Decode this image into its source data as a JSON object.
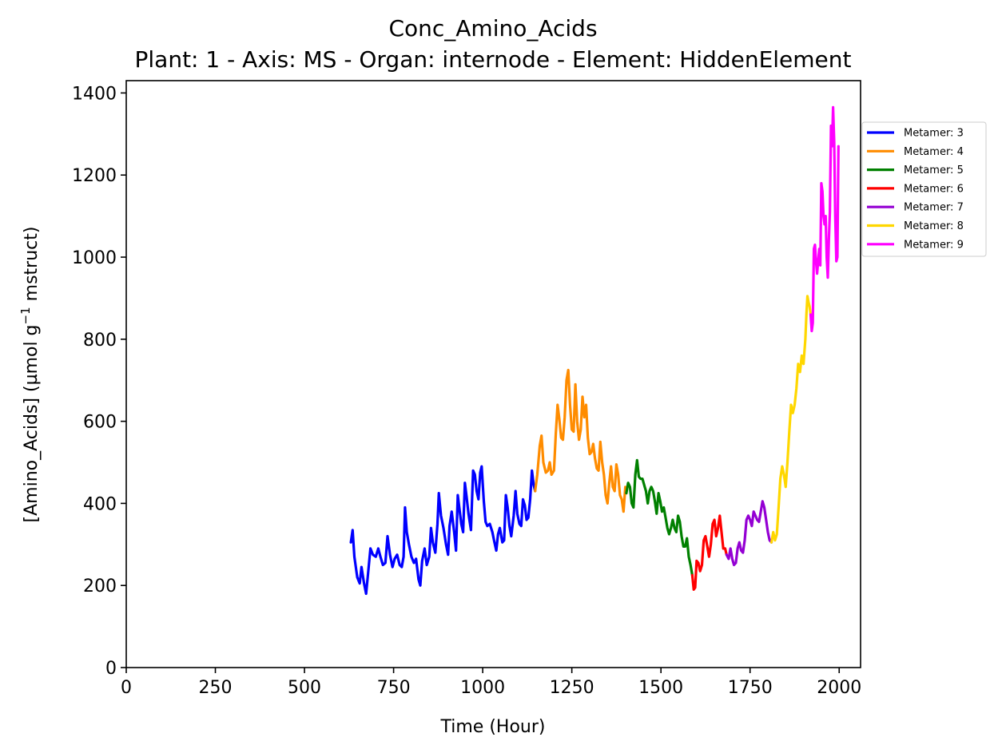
{
  "chart_data": {
    "type": "line",
    "title": "Conc_Amino_Acids",
    "subtitle": "Plant: 1 - Axis: MS - Organ: internode - Element: HiddenElement",
    "xlabel": "Time (Hour)",
    "ylabel_main": "[Amino_Acids] (µmol g",
    "ylabel_sup": "−1",
    "ylabel_tail": " mstruct)",
    "xlim": [
      0,
      2060
    ],
    "ylim": [
      0,
      1430
    ],
    "xticks": [
      0,
      250,
      500,
      750,
      1000,
      1250,
      1500,
      1750,
      2000
    ],
    "yticks": [
      0,
      200,
      400,
      600,
      800,
      1000,
      1200,
      1400
    ],
    "grid": false,
    "legend_position": "right, outside top",
    "series": [
      {
        "name": "Metamer: 3",
        "color": "#0000ff",
        "points": [
          [
            630,
            305
          ],
          [
            635,
            335
          ],
          [
            640,
            270
          ],
          [
            648,
            220
          ],
          [
            655,
            205
          ],
          [
            660,
            245
          ],
          [
            667,
            205
          ],
          [
            673,
            180
          ],
          [
            680,
            245
          ],
          [
            685,
            290
          ],
          [
            692,
            275
          ],
          [
            700,
            270
          ],
          [
            707,
            290
          ],
          [
            713,
            270
          ],
          [
            720,
            250
          ],
          [
            727,
            255
          ],
          [
            733,
            320
          ],
          [
            740,
            275
          ],
          [
            747,
            245
          ],
          [
            753,
            265
          ],
          [
            760,
            275
          ],
          [
            767,
            250
          ],
          [
            773,
            245
          ],
          [
            778,
            270
          ],
          [
            782,
            390
          ],
          [
            787,
            330
          ],
          [
            793,
            300
          ],
          [
            800,
            270
          ],
          [
            807,
            255
          ],
          [
            813,
            265
          ],
          [
            820,
            215
          ],
          [
            825,
            200
          ],
          [
            830,
            260
          ],
          [
            837,
            290
          ],
          [
            843,
            250
          ],
          [
            850,
            270
          ],
          [
            855,
            340
          ],
          [
            860,
            305
          ],
          [
            867,
            280
          ],
          [
            873,
            350
          ],
          [
            877,
            425
          ],
          [
            883,
            370
          ],
          [
            890,
            340
          ],
          [
            897,
            300
          ],
          [
            903,
            275
          ],
          [
            907,
            345
          ],
          [
            913,
            380
          ],
          [
            920,
            330
          ],
          [
            925,
            285
          ],
          [
            930,
            420
          ],
          [
            935,
            385
          ],
          [
            940,
            350
          ],
          [
            945,
            330
          ],
          [
            950,
            450
          ],
          [
            955,
            415
          ],
          [
            960,
            375
          ],
          [
            967,
            335
          ],
          [
            973,
            480
          ],
          [
            978,
            470
          ],
          [
            983,
            430
          ],
          [
            988,
            410
          ],
          [
            993,
            475
          ],
          [
            997,
            490
          ],
          [
            1003,
            405
          ],
          [
            1008,
            355
          ],
          [
            1013,
            345
          ],
          [
            1020,
            350
          ],
          [
            1027,
            330
          ],
          [
            1033,
            305
          ],
          [
            1038,
            285
          ],
          [
            1043,
            325
          ],
          [
            1048,
            340
          ],
          [
            1055,
            305
          ],
          [
            1060,
            310
          ],
          [
            1065,
            420
          ],
          [
            1070,
            390
          ],
          [
            1075,
            345
          ],
          [
            1080,
            320
          ],
          [
            1087,
            370
          ],
          [
            1092,
            430
          ],
          [
            1097,
            375
          ],
          [
            1103,
            350
          ],
          [
            1108,
            345
          ],
          [
            1113,
            410
          ],
          [
            1118,
            395
          ],
          [
            1123,
            360
          ],
          [
            1128,
            365
          ],
          [
            1133,
            410
          ],
          [
            1138,
            480
          ],
          [
            1143,
            445
          ],
          [
            1147,
            430
          ]
        ]
      },
      {
        "name": "Metamer: 4",
        "color": "#ff8c00",
        "points": [
          [
            1147,
            430
          ],
          [
            1153,
            470
          ],
          [
            1160,
            540
          ],
          [
            1165,
            565
          ],
          [
            1170,
            500
          ],
          [
            1177,
            475
          ],
          [
            1183,
            480
          ],
          [
            1188,
            500
          ],
          [
            1193,
            470
          ],
          [
            1200,
            480
          ],
          [
            1205,
            570
          ],
          [
            1210,
            640
          ],
          [
            1215,
            605
          ],
          [
            1220,
            560
          ],
          [
            1225,
            555
          ],
          [
            1230,
            610
          ],
          [
            1235,
            700
          ],
          [
            1240,
            725
          ],
          [
            1245,
            640
          ],
          [
            1250,
            580
          ],
          [
            1255,
            575
          ],
          [
            1260,
            690
          ],
          [
            1265,
            600
          ],
          [
            1270,
            555
          ],
          [
            1275,
            580
          ],
          [
            1280,
            660
          ],
          [
            1285,
            610
          ],
          [
            1290,
            640
          ],
          [
            1295,
            560
          ],
          [
            1300,
            520
          ],
          [
            1305,
            525
          ],
          [
            1310,
            545
          ],
          [
            1315,
            510
          ],
          [
            1320,
            485
          ],
          [
            1325,
            480
          ],
          [
            1330,
            550
          ],
          [
            1335,
            500
          ],
          [
            1340,
            470
          ],
          [
            1345,
            420
          ],
          [
            1350,
            400
          ],
          [
            1355,
            450
          ],
          [
            1360,
            490
          ],
          [
            1365,
            440
          ],
          [
            1370,
            430
          ],
          [
            1375,
            495
          ],
          [
            1380,
            470
          ],
          [
            1385,
            420
          ],
          [
            1390,
            410
          ],
          [
            1395,
            380
          ],
          [
            1400,
            440
          ],
          [
            1403,
            425
          ]
        ]
      },
      {
        "name": "Metamer: 5",
        "color": "#008000",
        "points": [
          [
            1403,
            425
          ],
          [
            1408,
            450
          ],
          [
            1413,
            440
          ],
          [
            1418,
            400
          ],
          [
            1423,
            390
          ],
          [
            1428,
            470
          ],
          [
            1433,
            505
          ],
          [
            1438,
            465
          ],
          [
            1443,
            460
          ],
          [
            1448,
            460
          ],
          [
            1453,
            445
          ],
          [
            1458,
            430
          ],
          [
            1463,
            400
          ],
          [
            1468,
            430
          ],
          [
            1473,
            440
          ],
          [
            1478,
            430
          ],
          [
            1483,
            405
          ],
          [
            1488,
            375
          ],
          [
            1493,
            425
          ],
          [
            1498,
            405
          ],
          [
            1503,
            380
          ],
          [
            1508,
            390
          ],
          [
            1513,
            365
          ],
          [
            1518,
            340
          ],
          [
            1523,
            325
          ],
          [
            1528,
            340
          ],
          [
            1533,
            360
          ],
          [
            1538,
            340
          ],
          [
            1543,
            330
          ],
          [
            1548,
            370
          ],
          [
            1553,
            355
          ],
          [
            1558,
            320
          ],
          [
            1563,
            295
          ],
          [
            1568,
            295
          ],
          [
            1573,
            315
          ],
          [
            1578,
            270
          ],
          [
            1583,
            250
          ],
          [
            1588,
            225
          ]
        ]
      },
      {
        "name": "Metamer: 6",
        "color": "#ff0000",
        "points": [
          [
            1588,
            225
          ],
          [
            1592,
            190
          ],
          [
            1596,
            195
          ],
          [
            1600,
            260
          ],
          [
            1605,
            255
          ],
          [
            1610,
            235
          ],
          [
            1615,
            250
          ],
          [
            1620,
            310
          ],
          [
            1625,
            320
          ],
          [
            1630,
            295
          ],
          [
            1635,
            270
          ],
          [
            1640,
            300
          ],
          [
            1645,
            350
          ],
          [
            1650,
            360
          ],
          [
            1655,
            320
          ],
          [
            1660,
            340
          ],
          [
            1665,
            370
          ],
          [
            1670,
            330
          ],
          [
            1675,
            290
          ],
          [
            1680,
            290
          ],
          [
            1684,
            275
          ]
        ]
      },
      {
        "name": "Metamer: 7",
        "color": "#9400d3",
        "points": [
          [
            1684,
            275
          ],
          [
            1690,
            265
          ],
          [
            1695,
            290
          ],
          [
            1700,
            265
          ],
          [
            1705,
            250
          ],
          [
            1710,
            255
          ],
          [
            1715,
            290
          ],
          [
            1720,
            305
          ],
          [
            1725,
            285
          ],
          [
            1730,
            280
          ],
          [
            1735,
            310
          ],
          [
            1740,
            360
          ],
          [
            1745,
            370
          ],
          [
            1750,
            360
          ],
          [
            1755,
            345
          ],
          [
            1760,
            380
          ],
          [
            1765,
            370
          ],
          [
            1770,
            360
          ],
          [
            1775,
            355
          ],
          [
            1780,
            380
          ],
          [
            1785,
            405
          ],
          [
            1790,
            390
          ],
          [
            1795,
            360
          ],
          [
            1800,
            330
          ],
          [
            1805,
            310
          ],
          [
            1810,
            305
          ]
        ]
      },
      {
        "name": "Metamer: 8",
        "color": "#ffd700",
        "points": [
          [
            1810,
            305
          ],
          [
            1815,
            330
          ],
          [
            1820,
            310
          ],
          [
            1825,
            325
          ],
          [
            1830,
            390
          ],
          [
            1835,
            460
          ],
          [
            1840,
            490
          ],
          [
            1845,
            470
          ],
          [
            1850,
            440
          ],
          [
            1855,
            500
          ],
          [
            1860,
            575
          ],
          [
            1865,
            640
          ],
          [
            1870,
            620
          ],
          [
            1875,
            640
          ],
          [
            1880,
            680
          ],
          [
            1885,
            740
          ],
          [
            1890,
            720
          ],
          [
            1895,
            760
          ],
          [
            1900,
            740
          ],
          [
            1905,
            800
          ],
          [
            1908,
            860
          ],
          [
            1911,
            905
          ],
          [
            1914,
            890
          ],
          [
            1917,
            880
          ],
          [
            1920,
            860
          ]
        ]
      },
      {
        "name": "Metamer: 9",
        "color": "#ff00ff",
        "points": [
          [
            1920,
            860
          ],
          [
            1923,
            820
          ],
          [
            1926,
            840
          ],
          [
            1929,
            1020
          ],
          [
            1932,
            1030
          ],
          [
            1935,
            990
          ],
          [
            1938,
            960
          ],
          [
            1941,
            990
          ],
          [
            1944,
            1020
          ],
          [
            1947,
            980
          ],
          [
            1950,
            1180
          ],
          [
            1953,
            1160
          ],
          [
            1956,
            1100
          ],
          [
            1959,
            1080
          ],
          [
            1962,
            1100
          ],
          [
            1965,
            1000
          ],
          [
            1968,
            950
          ],
          [
            1971,
            1040
          ],
          [
            1974,
            1110
          ],
          [
            1977,
            1320
          ],
          [
            1980,
            1270
          ],
          [
            1983,
            1365
          ],
          [
            1986,
            1280
          ],
          [
            1989,
            1100
          ],
          [
            1992,
            990
          ],
          [
            1995,
            1000
          ],
          [
            1998,
            1270
          ]
        ]
      }
    ]
  }
}
